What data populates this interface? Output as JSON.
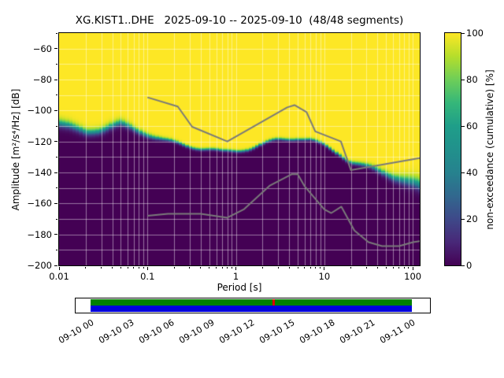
{
  "title": "XG.KIST1..DHE   2025-09-10 -- 2025-09-10  (48/48 segments)",
  "axes": {
    "xlabel": "Period [s]",
    "ylabel": "Amplitude [m²/s⁴/Hz] [dB]",
    "xlim": [
      0.01,
      120
    ],
    "ylim": [
      -200,
      -50
    ],
    "x_ticks": [
      0.01,
      0.1,
      1,
      10,
      100
    ],
    "x_tick_labels": [
      "0.01",
      "0.1",
      "1",
      "10",
      "100"
    ],
    "y_ticks": [
      -60,
      -80,
      -100,
      -120,
      -140,
      -160,
      -180,
      -200
    ],
    "y_tick_labels": [
      "−60",
      "−80",
      "−100",
      "−120",
      "−140",
      "−160",
      "−180",
      "−200"
    ],
    "grid_db_step": 10,
    "grid_color": "rgba(255,255,255,0.45)"
  },
  "colorbar": {
    "label": "non-exceedance (cumulative) [%]",
    "ticks": [
      0,
      20,
      40,
      60,
      80,
      100
    ],
    "colormap": "viridis",
    "stops": [
      "#440154",
      "#482878",
      "#3e4989",
      "#31688e",
      "#26828e",
      "#21918c",
      "#1f9e89",
      "#35b779",
      "#6ece58",
      "#b5de2b",
      "#fde725"
    ]
  },
  "chart_data": {
    "type": "heatmap",
    "description": "Cumulative PPSD (probabilistic power spectral density) plot: non-exceedance percentage of 48/48 segments vs period and acceleration PSD amplitude. Yellow = 100% (all segments below), dark purple = 0%. Gray lines are Peterson NHNM/NLNM noise models.",
    "boundary": {
      "comment": "Median transition (dB) between 0% and 100% regions, with transition half-width 'spread' in dB",
      "periods": [
        0.01,
        0.015,
        0.02,
        0.03,
        0.04,
        0.05,
        0.07,
        0.1,
        0.15,
        0.2,
        0.3,
        0.5,
        0.7,
        1.0,
        1.5,
        2.0,
        3.0,
        4.0,
        5.0,
        7.0,
        10,
        15,
        20,
        30,
        50,
        70,
        100,
        120
      ],
      "db": [
        -108,
        -112,
        -114,
        -112,
        -110,
        -109,
        -112,
        -115,
        -119,
        -121,
        -123,
        -125,
        -127,
        -126,
        -124,
        -122,
        -119,
        -118,
        -117.5,
        -119,
        -123,
        -128,
        -133,
        -136.5,
        -140.5,
        -143.5,
        -147,
        -149
      ],
      "spread": [
        6,
        5.5,
        5,
        5,
        5,
        5,
        4,
        3.5,
        2.5,
        2.2,
        2,
        2,
        2,
        2,
        2,
        2,
        2,
        2,
        2,
        2,
        2,
        2.2,
        2.5,
        3,
        4.5,
        6,
        8,
        9
      ]
    },
    "noise_models": {
      "color": "#7a7a7a",
      "nhnm": {
        "name": "Peterson New High Noise Model",
        "periods": [
          0.1,
          0.22,
          0.32,
          0.8,
          3.8,
          4.6,
          6.3,
          7.9,
          15.4,
          20.0,
          120.0
        ],
        "db": [
          -91.5,
          -97.4,
          -110.5,
          -120.0,
          -98.0,
          -96.5,
          -101.0,
          -113.5,
          -120.0,
          -138.5,
          -130.7
        ]
      },
      "nlnm": {
        "name": "Peterson New Low Noise Model",
        "periods": [
          0.1,
          0.17,
          0.4,
          0.8,
          1.24,
          2.4,
          4.3,
          5.0,
          6.0,
          10.0,
          12.0,
          15.6,
          21.9,
          31.6,
          45.0,
          70.0,
          101.0,
          120.0
        ],
        "db": [
          -168.0,
          -166.7,
          -166.7,
          -169.2,
          -163.7,
          -148.6,
          -141.1,
          -141.1,
          -149.0,
          -163.8,
          -166.2,
          -162.1,
          -177.5,
          -185.0,
          -187.5,
          -187.5,
          -185.0,
          -184.3
        ]
      }
    }
  },
  "timeline": {
    "tick_labels": [
      "09-10 00",
      "09-10 03",
      "09-10 06",
      "09-10 09",
      "09-10 12",
      "09-10 15",
      "09-10 18",
      "09-10 21",
      "09-11 00"
    ],
    "rows": [
      {
        "name": "data-coverage-bar",
        "color": "#008000",
        "segments": [
          [
            0,
            0.565
          ],
          [
            0.5735,
            1
          ]
        ]
      },
      {
        "name": "segment-coverage-bar",
        "color": "#0000dd",
        "segments": [
          [
            0,
            1
          ]
        ]
      }
    ],
    "gap": {
      "name": "data-gap-marker",
      "color": "#dd0000",
      "start": 0.565,
      "end": 0.5735
    }
  }
}
